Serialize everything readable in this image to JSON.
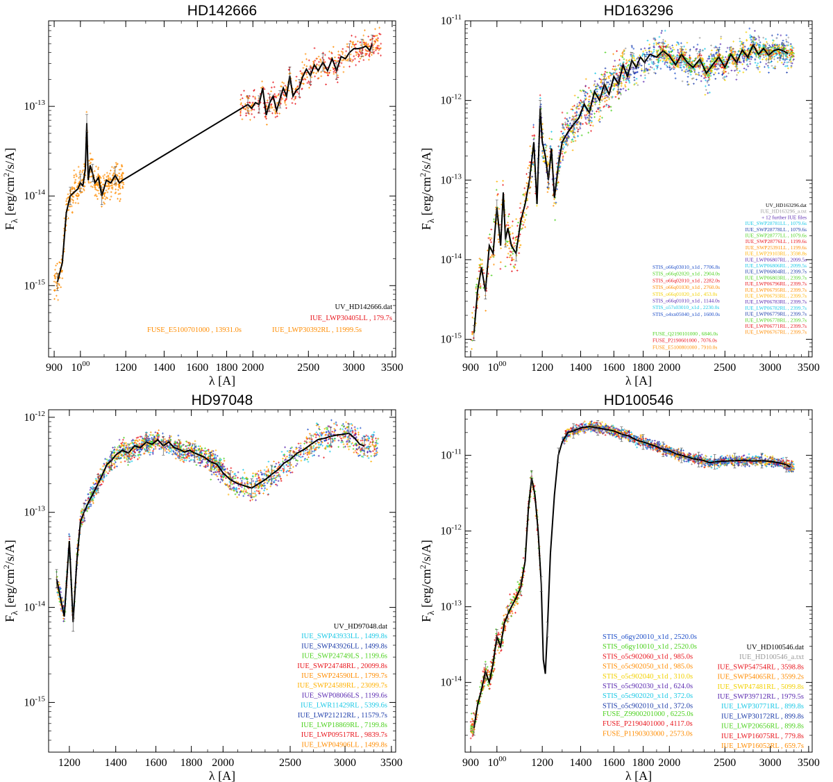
{
  "figure": {
    "colors": {
      "black": "#000000",
      "gray": "#999999",
      "red": "#e8141b",
      "orange": "#ff8c00",
      "yelloworange": "#ffb000",
      "yellow": "#f2d000",
      "green": "#4cd11e",
      "cyan": "#19c8e6",
      "blue": "#1f4fc8",
      "purple": "#5a2ab0",
      "navy": "#1a3aa8"
    }
  },
  "chart_data": [
    {
      "type": "scatter",
      "title": "HD142666",
      "xlabel": "λ [A]",
      "ylabel": "Fλ [erg/cm²/s/A]",
      "xscale": "log",
      "yscale": "log",
      "xlim": [
        880,
        3550
      ],
      "ylim": [
        1.6e-16,
        9e-13
      ],
      "xticks": [
        "900",
        "1000",
        "1200",
        "1400",
        "1600",
        "1800",
        "2000",
        "2500",
        "3000",
        "3500"
      ],
      "yticks": [
        "10-15",
        "10-14",
        "10-13"
      ],
      "legend": [
        {
          "text": "UV_HD142666.dat",
          "color": "#000000"
        },
        {
          "text": "IUE_LWP30405LL , 179.7s",
          "color": "#e8141b"
        },
        {
          "text": "FUSE_E5100701000 , 13931.0s",
          "color": "#ff8c00"
        },
        {
          "text": "IUE_LWP30392RL , 11999.5s",
          "color": "#ff8c00"
        }
      ],
      "series": [
        {
          "name": "UV_HD142666.dat",
          "color": "#000000",
          "x": [
            912,
            930,
            945,
            960,
            975,
            990,
            1000,
            1010,
            1020,
            1026,
            1032,
            1040,
            1050,
            1060,
            1075,
            1090,
            1110,
            1130,
            1150,
            1170,
            1185,
            1960,
            1990,
            2020,
            2050,
            2080,
            2110,
            2140,
            2170,
            2200,
            2230,
            2260,
            2290,
            2320,
            2350,
            2380,
            2410,
            2440,
            2480,
            2520,
            2560,
            2600,
            2650,
            2700,
            2750,
            2800,
            2850,
            2900,
            2950,
            3000,
            3050,
            3100,
            3150,
            3200,
            3230
          ],
          "y": [
            1.1e-15,
            1.8e-15,
            6.5e-15,
            1e-14,
            1.1e-14,
            1.2e-14,
            1.4e-14,
            1.3e-14,
            2e-14,
            6.5e-14,
            1.5e-14,
            2.2e-14,
            1.8e-14,
            1.4e-14,
            1.6e-14,
            1e-14,
            1.5e-14,
            1.4e-14,
            1.7e-14,
            1.4e-14,
            1.5e-14,
            1.05e-13,
            9.5e-14,
            1.1e-13,
            1.05e-13,
            1.6e-13,
            8e-14,
            1.1e-13,
            1.3e-13,
            9e-14,
            1.2e-13,
            1.6e-13,
            1.3e-13,
            2.2e-13,
            1.3e-13,
            1.5e-13,
            1.6e-13,
            2.1e-13,
            2.6e-13,
            2.2e-13,
            2.9e-13,
            2.5e-13,
            3.1e-13,
            2.5e-13,
            3.4e-13,
            2.5e-13,
            3.6e-13,
            3.4e-13,
            4e-13,
            4.4e-13,
            4.4e-13,
            4.5e-13,
            4.7e-13,
            4.2e-13,
            5e-13
          ]
        }
      ]
    },
    {
      "type": "scatter",
      "title": "HD163296",
      "xlabel": "λ [A]",
      "ylabel": "Fλ [erg/cm²/s/A]",
      "xscale": "log",
      "yscale": "log",
      "xlim": [
        880,
        3550
      ],
      "ylim": [
        6e-16,
        1e-11
      ],
      "xticks": [
        "900",
        "1000",
        "1200",
        "1400",
        "1600",
        "1800",
        "2000",
        "2500",
        "3000",
        "3500"
      ],
      "yticks": [
        "10-15",
        "10-14",
        "10-13",
        "10-12",
        "10-11"
      ],
      "legend": [
        {
          "text": "UV_HD163296.dat",
          "color": "#000000"
        },
        {
          "text": "IUE_HD163296_a.txt",
          "color": "#999999"
        },
        {
          "text": "+ 12 further IUE files",
          "color": "#5a2ab0"
        },
        {
          "text": "IUE_SWP28781LL , 1079.6s",
          "color": "#19c8e6"
        },
        {
          "text": "IUE_SWP28778LL , 1079.6s",
          "color": "#1a3aa8"
        },
        {
          "text": "IUE_SWP28777LL , 1079.6s",
          "color": "#4cd11e"
        },
        {
          "text": "IUE_SWP28776LL , 1199.6s",
          "color": "#e8141b"
        },
        {
          "text": "IUE_SWP25391LL , 1199.6s",
          "color": "#ff8c00"
        },
        {
          "text": "IUE_LWP29103RL , 3598.8s",
          "color": "#ffb000"
        },
        {
          "text": "STIS_o66q03010_x1d , 7706.8s",
          "color": "#1f4fc8"
        },
        {
          "text": "IUE_LWP06807RL , 2099.5s",
          "color": "#5a2ab0"
        },
        {
          "text": "STIS_o66q02020_x1d , 2904.0s",
          "color": "#4cd11e"
        },
        {
          "text": "IUE_LWP06806RL , 2099.5s",
          "color": "#19c8e6"
        },
        {
          "text": "STIS_o66q02010_x1d , 2282.0s",
          "color": "#e8141b"
        },
        {
          "text": "IUE_LWP06804RL , 2399.7s",
          "color": "#1a3aa8"
        },
        {
          "text": "STIS_o66q01030_x1d , 2760.0s",
          "color": "#ff8c00"
        },
        {
          "text": "IUE_LWP06803RL , 2399.7s",
          "color": "#4cd11e"
        },
        {
          "text": "STIS_o66q01020_x1d , 453.0s",
          "color": "#f2d000"
        },
        {
          "text": "IUE_LWP06796RL , 2399.7s",
          "color": "#e8141b"
        },
        {
          "text": "STIS_o66q01010_x1d , 1144.0s",
          "color": "#5a2ab0"
        },
        {
          "text": "IUE_LWP06795RL , 2399.7s",
          "color": "#ff8c00"
        },
        {
          "text": "STIS_o57s03010_x1d , 2230.0s",
          "color": "#19c8e6"
        },
        {
          "text": "IUE_LWP06793RL , 2399.7s",
          "color": "#ffb000"
        },
        {
          "text": "STIS_o4xn05040_x1d , 1600.0s",
          "color": "#1f4fc8"
        },
        {
          "text": "IUE_LWP06783RL , 2399.7s",
          "color": "#5a2ab0"
        },
        {
          "text": "IUE_LWP06782RL , 2399.7s",
          "color": "#19c8e6"
        },
        {
          "text": "FUSE_Q2190101000 , 6846.0s",
          "color": "#4cd11e"
        },
        {
          "text": "IUE_LWP06779RL , 2399.7s",
          "color": "#1a3aa8"
        },
        {
          "text": "FUSE_P2190601000 , 7076.0s",
          "color": "#e8141b"
        },
        {
          "text": "IUE_LWP06778RL , 2399.7s",
          "color": "#4cd11e"
        },
        {
          "text": "FUSE_E5100801000 , 7910.0s",
          "color": "#ff8c00"
        },
        {
          "text": "IUE_LWP06771RL , 2399.7s",
          "color": "#e8141b"
        },
        {
          "text": "IUE_LWP06767RL , 2399.7s",
          "color": "#ff8c00"
        }
      ],
      "series": [
        {
          "name": "UV_HD163296.dat",
          "color": "#000000",
          "x": [
            912,
            925,
            940,
            955,
            970,
            985,
            1000,
            1015,
            1026,
            1035,
            1045,
            1060,
            1080,
            1100,
            1120,
            1140,
            1160,
            1175,
            1190,
            1200,
            1215,
            1230,
            1245,
            1260,
            1280,
            1300,
            1330,
            1360,
            1390,
            1420,
            1450,
            1480,
            1510,
            1540,
            1570,
            1600,
            1630,
            1660,
            1690,
            1720,
            1750,
            1780,
            1810,
            1850,
            1900,
            1950,
            2000,
            2050,
            2100,
            2150,
            2200,
            2260,
            2320,
            2380,
            2440,
            2500,
            2560,
            2620,
            2680,
            2740,
            2800,
            2860,
            2920,
            2980,
            3040,
            3100,
            3160,
            3220
          ],
          "y": [
            1.2e-15,
            4e-15,
            8e-15,
            4e-15,
            1.5e-14,
            1.2e-14,
            4.5e-14,
            1.5e-14,
            7e-14,
            1.8e-14,
            2.5e-14,
            1.5e-14,
            1.2e-14,
            3e-14,
            5e-14,
            1e-13,
            3e-13,
            5e-14,
            8e-13,
            3e-13,
            2e-13,
            1e-13,
            2.5e-13,
            6e-14,
            1.5e-13,
            3e-13,
            4e-13,
            5e-13,
            6e-13,
            9e-13,
            7e-13,
            1.3e-12,
            1e-12,
            1.6e-12,
            1.2e-12,
            2e-12,
            1.6e-12,
            2.8e-12,
            2e-12,
            3.2e-12,
            2.6e-12,
            3.5e-12,
            3e-12,
            3.8e-12,
            3.5e-12,
            4.2e-12,
            3.6e-12,
            2.8e-12,
            3.8e-12,
            3e-12,
            2.6e-12,
            3.3e-12,
            2.2e-12,
            2.8e-12,
            3.5e-12,
            2.6e-12,
            3.8e-12,
            3e-12,
            4.3e-12,
            3.5e-12,
            5e-12,
            3.8e-12,
            4.5e-12,
            3.7e-12,
            4.2e-12,
            4.4e-12,
            4.2e-12,
            3.9e-12
          ]
        }
      ]
    },
    {
      "type": "scatter",
      "title": "HD97048",
      "xlabel": "λ [A]",
      "ylabel": "Fλ [erg/cm²/s/A]",
      "xscale": "log",
      "yscale": "log",
      "xlim": [
        1120,
        3550
      ],
      "ylim": [
        3e-16,
        1.2e-12
      ],
      "xticks": [
        "1200",
        "1400",
        "1600",
        "1800",
        "2000",
        "2500",
        "3000",
        "3500"
      ],
      "yticks": [
        "10-15",
        "10-14",
        "10-13",
        "10-12"
      ],
      "legend": [
        {
          "text": "UV_HD97048.dat",
          "color": "#000000"
        },
        {
          "text": "IUE_SWP43933LL , 1499.8s",
          "color": "#19c8e6"
        },
        {
          "text": "IUE_SWP43926LL , 1499.8s",
          "color": "#1a3aa8"
        },
        {
          "text": "IUE_SWP24749LS , 1199.6s",
          "color": "#4cd11e"
        },
        {
          "text": "IUE_SWP24748RL , 20099.8s",
          "color": "#e8141b"
        },
        {
          "text": "IUE_SWP24590LL , 1799.7s",
          "color": "#ff8c00"
        },
        {
          "text": "IUE_SWP24589RL , 23099.7s",
          "color": "#ffb000"
        },
        {
          "text": "IUE_SWP08066LS , 1199.6s",
          "color": "#5a2ab0"
        },
        {
          "text": "IUE_LWR11429RL , 5399.6s",
          "color": "#19c8e6"
        },
        {
          "text": "IUE_LWP21212RL , 11579.7s",
          "color": "#1a3aa8"
        },
        {
          "text": "IUE_LWP18869RL , 7199.8s",
          "color": "#4cd11e"
        },
        {
          "text": "IUE_LWP09517RL , 9839.7s",
          "color": "#e8141b"
        },
        {
          "text": "IUE_LWP04906LL , 1499.8s",
          "color": "#ff8c00"
        }
      ],
      "series": [
        {
          "name": "UV_HD97048.dat",
          "color": "#000000",
          "x": [
            1150,
            1180,
            1200,
            1215,
            1230,
            1245,
            1260,
            1280,
            1300,
            1320,
            1340,
            1360,
            1380,
            1400,
            1430,
            1460,
            1490,
            1520,
            1550,
            1580,
            1610,
            1640,
            1670,
            1700,
            1730,
            1760,
            1790,
            1820,
            1850,
            1880,
            1920,
            1960,
            2000,
            2050,
            2100,
            2150,
            2200,
            2250,
            2300,
            2350,
            2400,
            2450,
            2500,
            2560,
            2620,
            2680,
            2740,
            2800,
            2860,
            2920,
            2980,
            3040,
            3100,
            3150,
            3200
          ],
          "y": [
            2e-14,
            8e-15,
            5e-14,
            7e-15,
            3e-14,
            8e-14,
            1e-13,
            1.3e-13,
            1.6e-13,
            2e-13,
            2.5e-13,
            3.2e-13,
            3.5e-13,
            4e-13,
            4.5e-13,
            4.2e-13,
            5e-13,
            4.8e-13,
            5.5e-13,
            5.2e-13,
            5.8e-13,
            5e-13,
            5.5e-13,
            4.8e-13,
            4.6e-13,
            4.3e-13,
            4.5e-13,
            4.2e-13,
            4e-13,
            3.8e-13,
            3.4e-13,
            3.2e-13,
            2.6e-13,
            2.2e-13,
            2e-13,
            1.9e-13,
            1.8e-13,
            2e-13,
            2.2e-13,
            2.5e-13,
            2.8e-13,
            3.3e-13,
            3.6e-13,
            4.2e-13,
            4.6e-13,
            5.2e-13,
            5.8e-13,
            6e-13,
            6.3e-13,
            6.5e-13,
            6.6e-13,
            6.8e-13,
            6e-13,
            5.2e-13,
            5e-13
          ]
        }
      ]
    },
    {
      "type": "scatter",
      "title": "HD100546",
      "xlabel": "λ [A]",
      "ylabel": "Fλ [erg/cm²/s/A]",
      "xscale": "log",
      "yscale": "log",
      "xlim": [
        880,
        3550
      ],
      "ylim": [
        1.2e-15,
        4e-11
      ],
      "xticks": [
        "900",
        "1000",
        "1200",
        "1400",
        "1600",
        "1800",
        "2000",
        "2500",
        "3000",
        "3500"
      ],
      "yticks": [
        "10-14",
        "10-13",
        "10-12",
        "10-11"
      ],
      "legend": [
        {
          "text": "STIS_o6gy20010_x1d , 2520.0s",
          "color": "#1f4fc8"
        },
        {
          "text": "STIS_o6gy10010_x1d , 2520.0s",
          "color": "#4cd11e"
        },
        {
          "text": "STIS_o5c902060_x1d , 985.0s",
          "color": "#e8141b"
        },
        {
          "text": "STIS_o5c902050_x1d , 985.0s",
          "color": "#ff8c00"
        },
        {
          "text": "STIS_o5c902040_x1d , 310.0s",
          "color": "#f2d000"
        },
        {
          "text": "STIS_o5c902030_x1d , 624.0s",
          "color": "#5a2ab0"
        },
        {
          "text": "STIS_o5c902020_x1d , 372.0s",
          "color": "#19c8e6"
        },
        {
          "text": "STIS_o5c902010_x1d , 372.0s",
          "color": "#1a3aa8"
        },
        {
          "text": "FUSE_Z9900201000 , 6225.0s",
          "color": "#4cd11e"
        },
        {
          "text": "FUSE_P2190401000 , 4117.0s",
          "color": "#e8141b"
        },
        {
          "text": "FUSE_P1190303000 , 2573.0s",
          "color": "#ff8c00"
        },
        {
          "text": "UV_HD100546.dat",
          "color": "#000000"
        },
        {
          "text": "IUE_HD100546_a.txt",
          "color": "#999999"
        },
        {
          "text": "IUE_SWP54754RL , 3598.8s",
          "color": "#e8141b"
        },
        {
          "text": "IUE_SWP54065RL , 3599.2s",
          "color": "#ff8c00"
        },
        {
          "text": "IUE_SWP47481RL , 5099.8s",
          "color": "#f2d000"
        },
        {
          "text": "IUE_SWP39712RL , 1979.5s",
          "color": "#5a2ab0"
        },
        {
          "text": "IUE_LWP30771RL , 899.8s",
          "color": "#19c8e6"
        },
        {
          "text": "IUE_LWP30172RL , 899.8s",
          "color": "#1a3aa8"
        },
        {
          "text": "IUE_LWP20656RL , 899.8s",
          "color": "#4cd11e"
        },
        {
          "text": "IUE_LWP16075RL , 779.8s",
          "color": "#e8141b"
        },
        {
          "text": "IUE_LWP16052RL , 659.7s",
          "color": "#ff8c00"
        }
      ],
      "series": [
        {
          "name": "UV_HD100546.dat",
          "color": "#000000",
          "x": [
            912,
            925,
            940,
            955,
            970,
            985,
            1000,
            1015,
            1030,
            1045,
            1060,
            1080,
            1100,
            1120,
            1135,
            1150,
            1165,
            1180,
            1195,
            1205,
            1215,
            1225,
            1240,
            1260,
            1280,
            1300,
            1330,
            1360,
            1400,
            1450,
            1500,
            1550,
            1600,
            1650,
            1700,
            1750,
            1800,
            1850,
            1900,
            1950,
            2000,
            2050,
            2100,
            2150,
            2200,
            2250,
            2300,
            2350,
            2400,
            2450,
            2500,
            2600,
            2700,
            2800,
            2900,
            3000,
            3100,
            3200,
            3250
          ],
          "y": [
            2.5e-15,
            5e-15,
            8e-15,
            1.4e-14,
            1e-14,
            1.8e-14,
            4e-14,
            3e-14,
            6e-14,
            8e-14,
            1e-13,
            1.3e-13,
            1.8e-13,
            4e-13,
            2e-12,
            5e-12,
            3e-12,
            1e-12,
            2e-13,
            2e-14,
            1.3e-14,
            5e-14,
            5e-13,
            3e-12,
            1e-11,
            1.5e-11,
            2e-11,
            2.1e-11,
            2.3e-11,
            2.4e-11,
            2.3e-11,
            2.2e-11,
            2.1e-11,
            1.9e-11,
            1.8e-11,
            1.6e-11,
            1.5e-11,
            1.4e-11,
            1.3e-11,
            1.2e-11,
            1.15e-11,
            1.05e-11,
            1e-11,
            9.5e-12,
            9e-12,
            8.8e-12,
            8.5e-12,
            8e-12,
            8.2e-12,
            8.3e-12,
            8.4e-12,
            8.5e-12,
            8.6e-12,
            8.4e-12,
            8.5e-12,
            8.3e-12,
            8e-12,
            7.5e-12,
            7e-12
          ]
        }
      ]
    }
  ]
}
